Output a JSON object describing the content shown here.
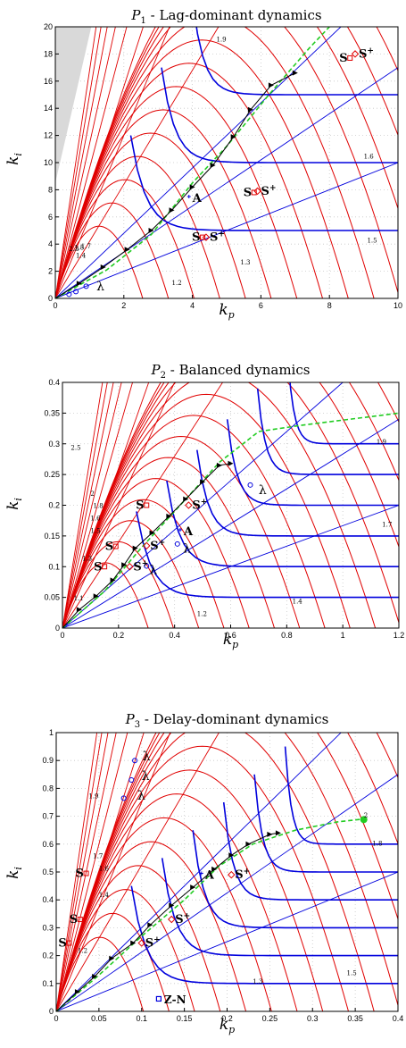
{
  "colors": {
    "red": "#e00000",
    "blue": "#0000dd",
    "green": "#22cc22",
    "black": "#000000",
    "grid": "#c8c8c8",
    "shade": "#d9d9d9"
  },
  "chart_data": [
    {
      "type": "line",
      "title": "P1 - Lag-dominant dynamics",
      "title_sub": "1",
      "title_rest": " - Lag-dominant dynamics",
      "xlabel": "kp",
      "ylabel": "ki",
      "xlim": [
        0,
        10
      ],
      "ylim": [
        0,
        20
      ],
      "xticks": [
        0,
        2,
        4,
        6,
        8,
        10
      ],
      "yticks": [
        0,
        2,
        4,
        6,
        8,
        10,
        12,
        14,
        16,
        18,
        20
      ],
      "grid": true,
      "red_arc_labels": [
        {
          "text": "1.2",
          "x": 3.4,
          "y": 1.0
        },
        {
          "text": "1.3",
          "x": 5.4,
          "y": 2.5
        },
        {
          "text": "1.5",
          "x": 9.1,
          "y": 4.1
        },
        {
          "text": "1.6",
          "x": 9.0,
          "y": 10.3
        },
        {
          "text": "1.9",
          "x": 4.7,
          "y": 18.9
        },
        {
          "text": "1.4",
          "x": 0.6,
          "y": 3.0
        },
        {
          "text": "2.3",
          "x": 0.4,
          "y": 3.5
        },
        {
          "text": "1.8",
          "x": 0.55,
          "y": 3.6
        },
        {
          "text": "1.7",
          "x": 0.75,
          "y": 3.7
        }
      ],
      "blue_levels": [
        5,
        10,
        15
      ],
      "black_path": [
        [
          0,
          0
        ],
        [
          0.7,
          1.1
        ],
        [
          1.4,
          2.3
        ],
        [
          2.1,
          3.6
        ],
        [
          2.8,
          5.0
        ],
        [
          3.4,
          6.5
        ],
        [
          4.0,
          8.2
        ],
        [
          4.6,
          9.8
        ],
        [
          5.2,
          11.9
        ],
        [
          5.7,
          13.9
        ],
        [
          6.3,
          15.7
        ],
        [
          7.0,
          16.6
        ]
      ],
      "green_path": [
        [
          0,
          0
        ],
        [
          1.5,
          2.1
        ],
        [
          2.8,
          4.7
        ],
        [
          4.0,
          8.5
        ],
        [
          5.0,
          11.2
        ],
        [
          6.2,
          14.9
        ],
        [
          7.4,
          18.4
        ],
        [
          8.0,
          20
        ]
      ],
      "points": [
        {
          "label": "S",
          "sup": "",
          "x": 4.3,
          "y": 4.5
        },
        {
          "label": "S",
          "sup": "+",
          "x": 4.4,
          "y": 4.5
        },
        {
          "label": "S",
          "sup": "",
          "x": 5.8,
          "y": 7.8
        },
        {
          "label": "S",
          "sup": "+",
          "x": 5.9,
          "y": 7.9
        },
        {
          "label": "S",
          "sup": "",
          "x": 8.6,
          "y": 17.7
        },
        {
          "label": "S",
          "sup": "+",
          "x": 8.75,
          "y": 18.0
        },
        {
          "label": "A",
          "sup": "",
          "x": 3.9,
          "y": 7.5
        }
      ],
      "lambda_labels": [
        {
          "text": "λ",
          "x": 1.2,
          "y": 0.6
        }
      ],
      "lambda_points": [
        [
          0.4,
          0.3
        ],
        [
          0.6,
          0.5
        ],
        [
          0.9,
          0.9
        ]
      ]
    },
    {
      "type": "line",
      "title": "P2 - Balanced dynamics",
      "title_sub": "2",
      "title_rest": " - Balanced dynamics",
      "xlabel": "kp",
      "ylabel": "ki",
      "xlim": [
        0,
        1.2
      ],
      "ylim": [
        0,
        0.4
      ],
      "xticks": [
        0,
        0.2,
        0.4,
        0.6,
        0.8,
        1,
        1.2
      ],
      "xtick_labels": [
        "0",
        "0.2",
        "0.4",
        "0.6",
        "0.8",
        "1",
        "1.2"
      ],
      "yticks": [
        0,
        0.05,
        0.1,
        0.15,
        0.2,
        0.25,
        0.3,
        0.35,
        0.4
      ],
      "ytick_labels": [
        "0",
        "0.05",
        "0.1",
        "0.15",
        "0.2",
        "0.25",
        "0.3",
        "0.35",
        "0.4"
      ],
      "grid": true,
      "red_arc_labels": [
        {
          "text": "1.1",
          "x": 0.04,
          "y": 0.045
        },
        {
          "text": "1.2",
          "x": 0.48,
          "y": 0.02
        },
        {
          "text": "1.3",
          "x": 0.07,
          "y": 0.11
        },
        {
          "text": "1.4",
          "x": 0.82,
          "y": 0.04
        },
        {
          "text": "1.5",
          "x": 0.1,
          "y": 0.155
        },
        {
          "text": "1.6",
          "x": 0.1,
          "y": 0.175
        },
        {
          "text": "1.8",
          "x": 0.11,
          "y": 0.196
        },
        {
          "text": "2",
          "x": 0.1,
          "y": 0.215
        },
        {
          "text": "2.5",
          "x": 0.03,
          "y": 0.29
        },
        {
          "text": "1.7",
          "x": 1.14,
          "y": 0.165
        },
        {
          "text": "1.9",
          "x": 1.12,
          "y": 0.3
        }
      ],
      "blue_levels": [
        0.05,
        0.1,
        0.15,
        0.2,
        0.25,
        0.3
      ],
      "black_path": [
        [
          0,
          0
        ],
        [
          0.06,
          0.03
        ],
        [
          0.12,
          0.052
        ],
        [
          0.18,
          0.078
        ],
        [
          0.22,
          0.103
        ],
        [
          0.26,
          0.13
        ],
        [
          0.32,
          0.155
        ],
        [
          0.38,
          0.182
        ],
        [
          0.44,
          0.21
        ],
        [
          0.5,
          0.238
        ],
        [
          0.56,
          0.265
        ],
        [
          0.6,
          0.268
        ]
      ],
      "green_path": [
        [
          0,
          0
        ],
        [
          0.15,
          0.06
        ],
        [
          0.28,
          0.13
        ],
        [
          0.42,
          0.2
        ],
        [
          0.56,
          0.27
        ],
        [
          0.7,
          0.32
        ],
        [
          0.85,
          0.33
        ],
        [
          1.2,
          0.35
        ]
      ],
      "points": [
        {
          "label": "S",
          "sup": "",
          "x": 0.15,
          "y": 0.1
        },
        {
          "label": "S",
          "sup": "+",
          "x": 0.24,
          "y": 0.1
        },
        {
          "label": "S",
          "sup": "",
          "x": 0.19,
          "y": 0.133
        },
        {
          "label": "S",
          "sup": "+",
          "x": 0.3,
          "y": 0.134
        },
        {
          "label": "S",
          "sup": "",
          "x": 0.3,
          "y": 0.2
        },
        {
          "label": "S",
          "sup": "+",
          "x": 0.45,
          "y": 0.2
        },
        {
          "label": "A",
          "sup": "",
          "x": 0.42,
          "y": 0.16
        }
      ],
      "lambda_labels": [
        {
          "text": "λ",
          "x": 0.31,
          "y": 0.088
        },
        {
          "text": "λ",
          "x": 0.43,
          "y": 0.123
        },
        {
          "text": "λ",
          "x": 0.7,
          "y": 0.218
        }
      ],
      "lambda_points": [
        [
          0.3,
          0.101
        ],
        [
          0.41,
          0.137
        ],
        [
          0.67,
          0.233
        ]
      ]
    },
    {
      "type": "line",
      "title": "P3 - Delay-dominant dynamics",
      "title_sub": "3",
      "title_rest": " - Delay-dominant dynamics",
      "xlabel": "kp",
      "ylabel": "ki",
      "xlim": [
        0,
        0.4
      ],
      "ylim": [
        0,
        1
      ],
      "xticks": [
        0,
        0.05,
        0.1,
        0.15,
        0.2,
        0.25,
        0.3,
        0.35,
        0.4
      ],
      "xtick_labels": [
        "0",
        "0.05",
        "0.1",
        "0.15",
        "0.2",
        "0.25",
        "0.3",
        "0.35",
        "0.4"
      ],
      "yticks": [
        0,
        0.1,
        0.2,
        0.3,
        0.4,
        0.5,
        0.6,
        0.7,
        0.8,
        0.9,
        1
      ],
      "ytick_labels": [
        "0",
        "0.1",
        "0.2",
        "0.3",
        "0.4",
        "0.5",
        "0.6",
        "0.7",
        "0.8",
        "0.9",
        "1"
      ],
      "grid": true,
      "red_arc_labels": [
        {
          "text": "1.2",
          "x": 0.025,
          "y": 0.21
        },
        {
          "text": "1.3",
          "x": 0.23,
          "y": 0.1
        },
        {
          "text": "1.4",
          "x": 0.05,
          "y": 0.41
        },
        {
          "text": "1.5",
          "x": 0.34,
          "y": 0.13
        },
        {
          "text": "1.6",
          "x": 0.05,
          "y": 0.505
        },
        {
          "text": "1.7",
          "x": 0.043,
          "y": 0.55
        },
        {
          "text": "1.8",
          "x": 0.37,
          "y": 0.595
        },
        {
          "text": "1.9",
          "x": 0.038,
          "y": 0.765
        },
        {
          "text": "2",
          "x": 0.36,
          "y": 0.695
        }
      ],
      "blue_levels": [
        0.1,
        0.2,
        0.3,
        0.4,
        0.5,
        0.6
      ],
      "black_path": [
        [
          0,
          0
        ],
        [
          0.025,
          0.07
        ],
        [
          0.045,
          0.125
        ],
        [
          0.065,
          0.19
        ],
        [
          0.09,
          0.245
        ],
        [
          0.11,
          0.31
        ],
        [
          0.135,
          0.38
        ],
        [
          0.16,
          0.445
        ],
        [
          0.185,
          0.51
        ],
        [
          0.205,
          0.56
        ],
        [
          0.225,
          0.6
        ],
        [
          0.25,
          0.635
        ],
        [
          0.26,
          0.64
        ]
      ],
      "green_path": [
        [
          0,
          0
        ],
        [
          0.05,
          0.13
        ],
        [
          0.1,
          0.27
        ],
        [
          0.15,
          0.4
        ],
        [
          0.19,
          0.52
        ],
        [
          0.23,
          0.6
        ],
        [
          0.28,
          0.65
        ],
        [
          0.33,
          0.68
        ],
        [
          0.36,
          0.69
        ]
      ],
      "green_marker": [
        0.36,
        0.688
      ],
      "points": [
        {
          "label": "S",
          "sup": "",
          "x": 0.015,
          "y": 0.245
        },
        {
          "label": "S",
          "sup": "+",
          "x": 0.1,
          "y": 0.245
        },
        {
          "label": "S",
          "sup": "",
          "x": 0.028,
          "y": 0.33
        },
        {
          "label": "S",
          "sup": "+",
          "x": 0.135,
          "y": 0.33
        },
        {
          "label": "S",
          "sup": "",
          "x": 0.035,
          "y": 0.495
        },
        {
          "label": "S",
          "sup": "+",
          "x": 0.205,
          "y": 0.49
        },
        {
          "label": "A",
          "sup": "",
          "x": 0.17,
          "y": 0.495
        }
      ],
      "lambda_labels": [
        {
          "text": "λ",
          "x": 0.101,
          "y": 0.9
        },
        {
          "text": "λ",
          "x": 0.1,
          "y": 0.83
        },
        {
          "text": "λ",
          "x": 0.095,
          "y": 0.76
        }
      ],
      "lambda_points": [
        [
          0.092,
          0.9
        ],
        [
          0.088,
          0.83
        ],
        [
          0.079,
          0.765
        ]
      ],
      "zn": {
        "label": "Z-N",
        "x": 0.12,
        "y": 0.045
      }
    }
  ]
}
